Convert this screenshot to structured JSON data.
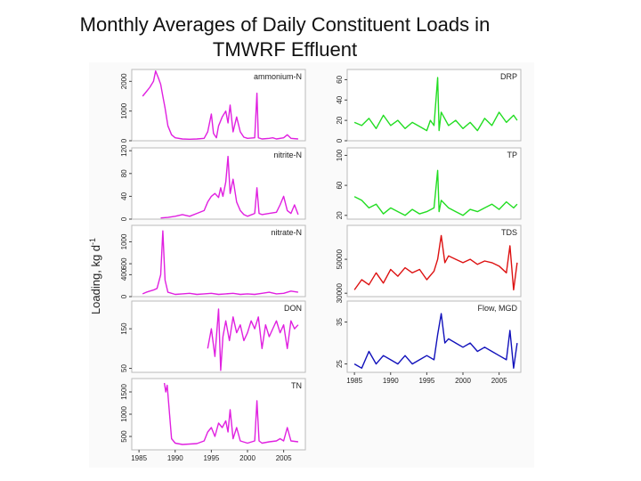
{
  "slide": {
    "title_line1": "Monthly Averages of Daily Constituent Loads in",
    "title_line2": "TMWRF Effluent"
  },
  "chart_data": {
    "type": "line",
    "ylabel": "Loading, kg d",
    "ylabel_superscript": "-1",
    "x_tick_labels": [
      "1985",
      "1990",
      "1995",
      "2000",
      "2005"
    ],
    "xlim": [
      1984,
      2008
    ],
    "panels": [
      {
        "label": "ammonium-N",
        "color": "#e020e0",
        "ylim": [
          0,
          2400
        ],
        "yticks": [
          0,
          1000,
          2000
        ],
        "ytick_labels": [
          "0",
          "1000",
          "2000"
        ],
        "points": [
          [
            1985.5,
            1500
          ],
          [
            1986,
            1650
          ],
          [
            1986.5,
            1800
          ],
          [
            1987,
            2000
          ],
          [
            1987.3,
            2350
          ],
          [
            1987.7,
            2100
          ],
          [
            1988,
            1900
          ],
          [
            1988.3,
            1500
          ],
          [
            1988.6,
            1100
          ],
          [
            1989,
            500
          ],
          [
            1989.5,
            200
          ],
          [
            1990,
            100
          ],
          [
            1991,
            60
          ],
          [
            1992,
            50
          ],
          [
            1993,
            60
          ],
          [
            1994,
            80
          ],
          [
            1994.5,
            300
          ],
          [
            1995,
            900
          ],
          [
            1995.3,
            250
          ],
          [
            1995.7,
            100
          ],
          [
            1996,
            500
          ],
          [
            1996.5,
            800
          ],
          [
            1997,
            1000
          ],
          [
            1997.3,
            600
          ],
          [
            1997.6,
            1200
          ],
          [
            1998,
            300
          ],
          [
            1998.5,
            800
          ],
          [
            1999,
            300
          ],
          [
            1999.5,
            120
          ],
          [
            2000,
            80
          ],
          [
            2001,
            100
          ],
          [
            2001.3,
            1600
          ],
          [
            2001.5,
            100
          ],
          [
            2002,
            60
          ],
          [
            2003,
            80
          ],
          [
            2003.5,
            100
          ],
          [
            2004,
            60
          ],
          [
            2005,
            100
          ],
          [
            2005.5,
            200
          ],
          [
            2006,
            80
          ],
          [
            2007,
            60
          ]
        ]
      },
      {
        "label": "nitrite-N",
        "color": "#e020e0",
        "ylim": [
          0,
          125
        ],
        "yticks": [
          0,
          40,
          80,
          120
        ],
        "ytick_labels": [
          "0",
          "40",
          "80",
          "120"
        ],
        "points": [
          [
            1988,
            2
          ],
          [
            1989,
            3
          ],
          [
            1990,
            5
          ],
          [
            1991,
            8
          ],
          [
            1992,
            5
          ],
          [
            1993,
            10
          ],
          [
            1994,
            15
          ],
          [
            1994.5,
            30
          ],
          [
            1995,
            40
          ],
          [
            1995.5,
            45
          ],
          [
            1996,
            38
          ],
          [
            1996.3,
            55
          ],
          [
            1996.6,
            40
          ],
          [
            1997,
            65
          ],
          [
            1997.3,
            110
          ],
          [
            1997.6,
            45
          ],
          [
            1998,
            70
          ],
          [
            1998.5,
            30
          ],
          [
            1999,
            15
          ],
          [
            1999.5,
            8
          ],
          [
            2000,
            5
          ],
          [
            2001,
            10
          ],
          [
            2001.3,
            55
          ],
          [
            2001.6,
            10
          ],
          [
            2002,
            8
          ],
          [
            2003,
            10
          ],
          [
            2004,
            12
          ],
          [
            2004.5,
            25
          ],
          [
            2005,
            40
          ],
          [
            2005.5,
            15
          ],
          [
            2006,
            10
          ],
          [
            2006.5,
            25
          ],
          [
            2007,
            8
          ]
        ]
      },
      {
        "label": "nitrate-N",
        "color": "#e020e0",
        "ylim": [
          0,
          1300
        ],
        "yticks": [
          0,
          400,
          600,
          1000
        ],
        "ytick_labels": [
          "0",
          "400",
          "600",
          "1000"
        ],
        "points": [
          [
            1985.5,
            50
          ],
          [
            1986,
            80
          ],
          [
            1986.5,
            100
          ],
          [
            1987,
            120
          ],
          [
            1987.5,
            150
          ],
          [
            1988,
            400
          ],
          [
            1988.3,
            1200
          ],
          [
            1988.6,
            300
          ],
          [
            1989,
            80
          ],
          [
            1990,
            40
          ],
          [
            1991,
            50
          ],
          [
            1992,
            60
          ],
          [
            1993,
            40
          ],
          [
            1994,
            50
          ],
          [
            1995,
            60
          ],
          [
            1996,
            40
          ],
          [
            1997,
            50
          ],
          [
            1998,
            60
          ],
          [
            1999,
            40
          ],
          [
            2000,
            50
          ],
          [
            2001,
            40
          ],
          [
            2002,
            60
          ],
          [
            2003,
            80
          ],
          [
            2004,
            50
          ],
          [
            2005,
            60
          ],
          [
            2006,
            100
          ],
          [
            2007,
            80
          ]
        ]
      },
      {
        "label": "DON",
        "color": "#e020e0",
        "ylim": [
          40,
          220
        ],
        "yticks": [
          50,
          150
        ],
        "ytick_labels": [
          "50",
          "150"
        ],
        "points": [
          [
            1994.5,
            100
          ],
          [
            1995,
            150
          ],
          [
            1995.5,
            80
          ],
          [
            1996,
            200
          ],
          [
            1996.3,
            45
          ],
          [
            1996.6,
            130
          ],
          [
            1997,
            170
          ],
          [
            1997.5,
            120
          ],
          [
            1998,
            180
          ],
          [
            1998.5,
            140
          ],
          [
            1999,
            160
          ],
          [
            1999.5,
            120
          ],
          [
            2000,
            140
          ],
          [
            2000.5,
            170
          ],
          [
            2001,
            150
          ],
          [
            2001.5,
            180
          ],
          [
            2002,
            100
          ],
          [
            2002.5,
            160
          ],
          [
            2003,
            130
          ],
          [
            2003.5,
            150
          ],
          [
            2004,
            170
          ],
          [
            2004.5,
            140
          ],
          [
            2005,
            160
          ],
          [
            2005.5,
            100
          ],
          [
            2006,
            170
          ],
          [
            2006.5,
            150
          ],
          [
            2007,
            160
          ]
        ]
      },
      {
        "label": "TN",
        "color": "#e020e0",
        "ylim": [
          200,
          1800
        ],
        "yticks": [
          500,
          1000,
          1500
        ],
        "ytick_labels": [
          "500",
          "1000",
          "1500"
        ],
        "points": [
          [
            1988.5,
            1700
          ],
          [
            1988.7,
            1500
          ],
          [
            1988.9,
            1650
          ],
          [
            1989.5,
            450
          ],
          [
            1990,
            350
          ],
          [
            1991,
            320
          ],
          [
            1992,
            330
          ],
          [
            1993,
            340
          ],
          [
            1994,
            400
          ],
          [
            1994.5,
            600
          ],
          [
            1995,
            700
          ],
          [
            1995.5,
            500
          ],
          [
            1996,
            800
          ],
          [
            1996.5,
            700
          ],
          [
            1997,
            850
          ],
          [
            1997.3,
            600
          ],
          [
            1997.6,
            1100
          ],
          [
            1998,
            450
          ],
          [
            1998.5,
            700
          ],
          [
            1999,
            400
          ],
          [
            2000,
            350
          ],
          [
            2001,
            400
          ],
          [
            2001.3,
            1300
          ],
          [
            2001.6,
            400
          ],
          [
            2002,
            350
          ],
          [
            2003,
            380
          ],
          [
            2004,
            400
          ],
          [
            2004.5,
            450
          ],
          [
            2005,
            400
          ],
          [
            2005.5,
            700
          ],
          [
            2006,
            400
          ],
          [
            2007,
            380
          ]
        ]
      },
      {
        "label": "DRP",
        "color": "#22dd22",
        "ylim": [
          0,
          70
        ],
        "yticks": [
          0,
          20,
          40,
          60
        ],
        "ytick_labels": [
          "0",
          "20",
          "40",
          "60"
        ],
        "points": [
          [
            1985,
            18
          ],
          [
            1986,
            15
          ],
          [
            1987,
            22
          ],
          [
            1988,
            12
          ],
          [
            1989,
            25
          ],
          [
            1990,
            15
          ],
          [
            1991,
            20
          ],
          [
            1992,
            12
          ],
          [
            1993,
            18
          ],
          [
            1994,
            14
          ],
          [
            1995,
            10
          ],
          [
            1995.5,
            20
          ],
          [
            1996,
            15
          ],
          [
            1996.5,
            62
          ],
          [
            1996.7,
            10
          ],
          [
            1997,
            28
          ],
          [
            1998,
            15
          ],
          [
            1999,
            20
          ],
          [
            2000,
            12
          ],
          [
            2001,
            18
          ],
          [
            2002,
            10
          ],
          [
            2003,
            22
          ],
          [
            2004,
            15
          ],
          [
            2005,
            28
          ],
          [
            2006,
            18
          ],
          [
            2007,
            25
          ],
          [
            2007.5,
            20
          ]
        ]
      },
      {
        "label": "TP",
        "color": "#22dd22",
        "ylim": [
          15,
          110
        ],
        "yticks": [
          20,
          60,
          100
        ],
        "ytick_labels": [
          "20",
          "60",
          "100"
        ],
        "points": [
          [
            1985,
            45
          ],
          [
            1986,
            40
          ],
          [
            1987,
            30
          ],
          [
            1988,
            35
          ],
          [
            1989,
            22
          ],
          [
            1990,
            30
          ],
          [
            1991,
            25
          ],
          [
            1992,
            20
          ],
          [
            1993,
            28
          ],
          [
            1994,
            22
          ],
          [
            1995,
            25
          ],
          [
            1996,
            30
          ],
          [
            1996.5,
            80
          ],
          [
            1996.7,
            25
          ],
          [
            1997,
            40
          ],
          [
            1998,
            30
          ],
          [
            1999,
            25
          ],
          [
            2000,
            20
          ],
          [
            2001,
            28
          ],
          [
            2002,
            25
          ],
          [
            2003,
            30
          ],
          [
            2004,
            35
          ],
          [
            2005,
            28
          ],
          [
            2006,
            38
          ],
          [
            2007,
            30
          ],
          [
            2007.5,
            35
          ]
        ]
      },
      {
        "label": "TDS",
        "color": "#dd1111",
        "ylim": [
          28000,
          70000
        ],
        "yticks": [
          30000,
          50000
        ],
        "ytick_labels": [
          "30000",
          "50000"
        ],
        "points": [
          [
            1985,
            32000
          ],
          [
            1986,
            38000
          ],
          [
            1987,
            35000
          ],
          [
            1988,
            42000
          ],
          [
            1989,
            36000
          ],
          [
            1990,
            44000
          ],
          [
            1991,
            40000
          ],
          [
            1992,
            45000
          ],
          [
            1993,
            42000
          ],
          [
            1994,
            44000
          ],
          [
            1995,
            38000
          ],
          [
            1996,
            43000
          ],
          [
            1996.5,
            50000
          ],
          [
            1997,
            64000
          ],
          [
            1997.5,
            48000
          ],
          [
            1998,
            52000
          ],
          [
            1999,
            50000
          ],
          [
            2000,
            48000
          ],
          [
            2001,
            50000
          ],
          [
            2002,
            47000
          ],
          [
            2003,
            49000
          ],
          [
            2004,
            48000
          ],
          [
            2005,
            46000
          ],
          [
            2006,
            42000
          ],
          [
            2006.5,
            58000
          ],
          [
            2007,
            32000
          ],
          [
            2007.5,
            48000
          ]
        ]
      },
      {
        "label": "Flow, MGD",
        "color": "#1111bb",
        "ylim": [
          23,
          40
        ],
        "yticks": [
          25,
          35
        ],
        "ytick_labels": [
          "25",
          "35"
        ],
        "points": [
          [
            1985,
            25
          ],
          [
            1986,
            24
          ],
          [
            1987,
            28
          ],
          [
            1988,
            25
          ],
          [
            1989,
            27
          ],
          [
            1990,
            26
          ],
          [
            1991,
            25
          ],
          [
            1992,
            27
          ],
          [
            1993,
            25
          ],
          [
            1994,
            26
          ],
          [
            1995,
            27
          ],
          [
            1996,
            26
          ],
          [
            1996.5,
            32
          ],
          [
            1997,
            37
          ],
          [
            1997.5,
            30
          ],
          [
            1998,
            31
          ],
          [
            1999,
            30
          ],
          [
            2000,
            29
          ],
          [
            2001,
            30
          ],
          [
            2002,
            28
          ],
          [
            2003,
            29
          ],
          [
            2004,
            28
          ],
          [
            2005,
            27
          ],
          [
            2006,
            26
          ],
          [
            2006.5,
            33
          ],
          [
            2007,
            24
          ],
          [
            2007.5,
            30
          ]
        ]
      }
    ]
  }
}
